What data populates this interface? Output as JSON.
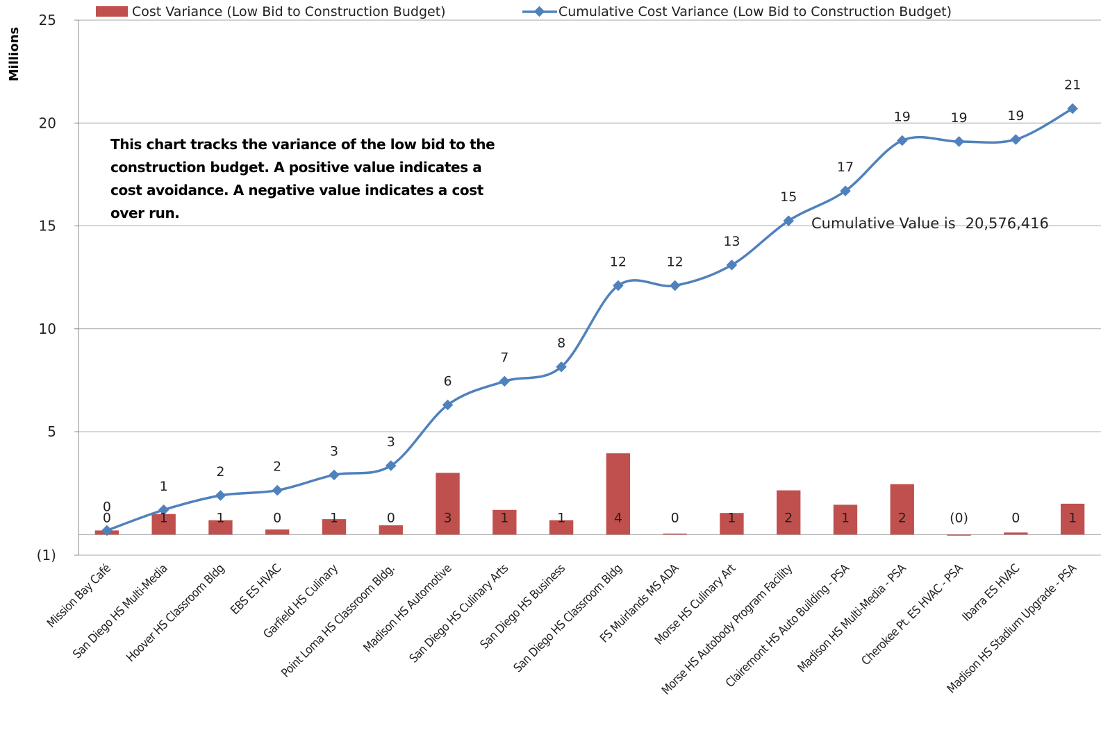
{
  "chart_data": {
    "type": "bar+line",
    "ylabel": "Millions",
    "ylim": [
      -1,
      25
    ],
    "yticks": [
      -1,
      5,
      10,
      15,
      20,
      25
    ],
    "ytick_labels": [
      "(1)",
      "5",
      "10",
      "15",
      "20",
      "25"
    ],
    "grid": true,
    "legend_position": "top",
    "categories": [
      "Mission Bay Café",
      "San Diego HS Multi-Media",
      "Hoover HS Classroom Bldg",
      "EBS ES HVAC",
      "Garfield HS Culinary",
      "Point Loma HS Classroom Bldg.",
      "Madison HS Automotive",
      "San Diego HS Culinary Arts",
      "San Diego HS Business",
      "San Diego HS Classroom Bldg",
      "FS Muirlands MS ADA",
      "Morse HS Culinary Art",
      "Morse HS Autobody Program Facility",
      "Clairemont HS Auto Building - PSA",
      "Madison HS Multi-Media - PSA",
      "Cherokee Pt. ES HVAC - PSA",
      "Ibarra ES HVAC",
      "Madison HS Stadium Upgrade - PSA"
    ],
    "series": [
      {
        "name": "Cost Variance (Low Bid to Construction  Budget)",
        "kind": "bar",
        "color": "#c0504d",
        "values": [
          0.2,
          1.0,
          0.7,
          0.25,
          0.75,
          0.45,
          3.0,
          1.2,
          0.7,
          3.95,
          0.05,
          1.05,
          2.15,
          1.45,
          2.45,
          -0.05,
          0.1,
          1.5
        ],
        "labels": [
          "0",
          "1",
          "1",
          "0",
          "1",
          "0",
          "3",
          "1",
          "1",
          "4",
          "0",
          "1",
          "2",
          "1",
          "2",
          "(0)",
          "0",
          "1"
        ]
      },
      {
        "name": "Cumulative Cost Variance (Low Bid to Construction  Budget)",
        "kind": "line",
        "color": "#4f81bd",
        "values": [
          0.2,
          1.2,
          1.9,
          2.15,
          2.9,
          3.35,
          6.3,
          7.45,
          8.15,
          12.1,
          12.1,
          13.1,
          15.25,
          16.7,
          19.15,
          19.1,
          19.2,
          20.7
        ],
        "labels": [
          "0",
          "1",
          "2",
          "2",
          "3",
          "3",
          "6",
          "7",
          "8",
          "12",
          "12",
          "13",
          "15",
          "17",
          "19",
          "19",
          "19",
          "21"
        ]
      }
    ],
    "annotations": [
      "This chart tracks the variance of the low bid to the construction budget.  A positive value indicates a cost avoidance. A negative value indicates a cost over run."
    ],
    "cumulative_label": "Cumulative Value is",
    "cumulative_value": "20,576,416"
  }
}
